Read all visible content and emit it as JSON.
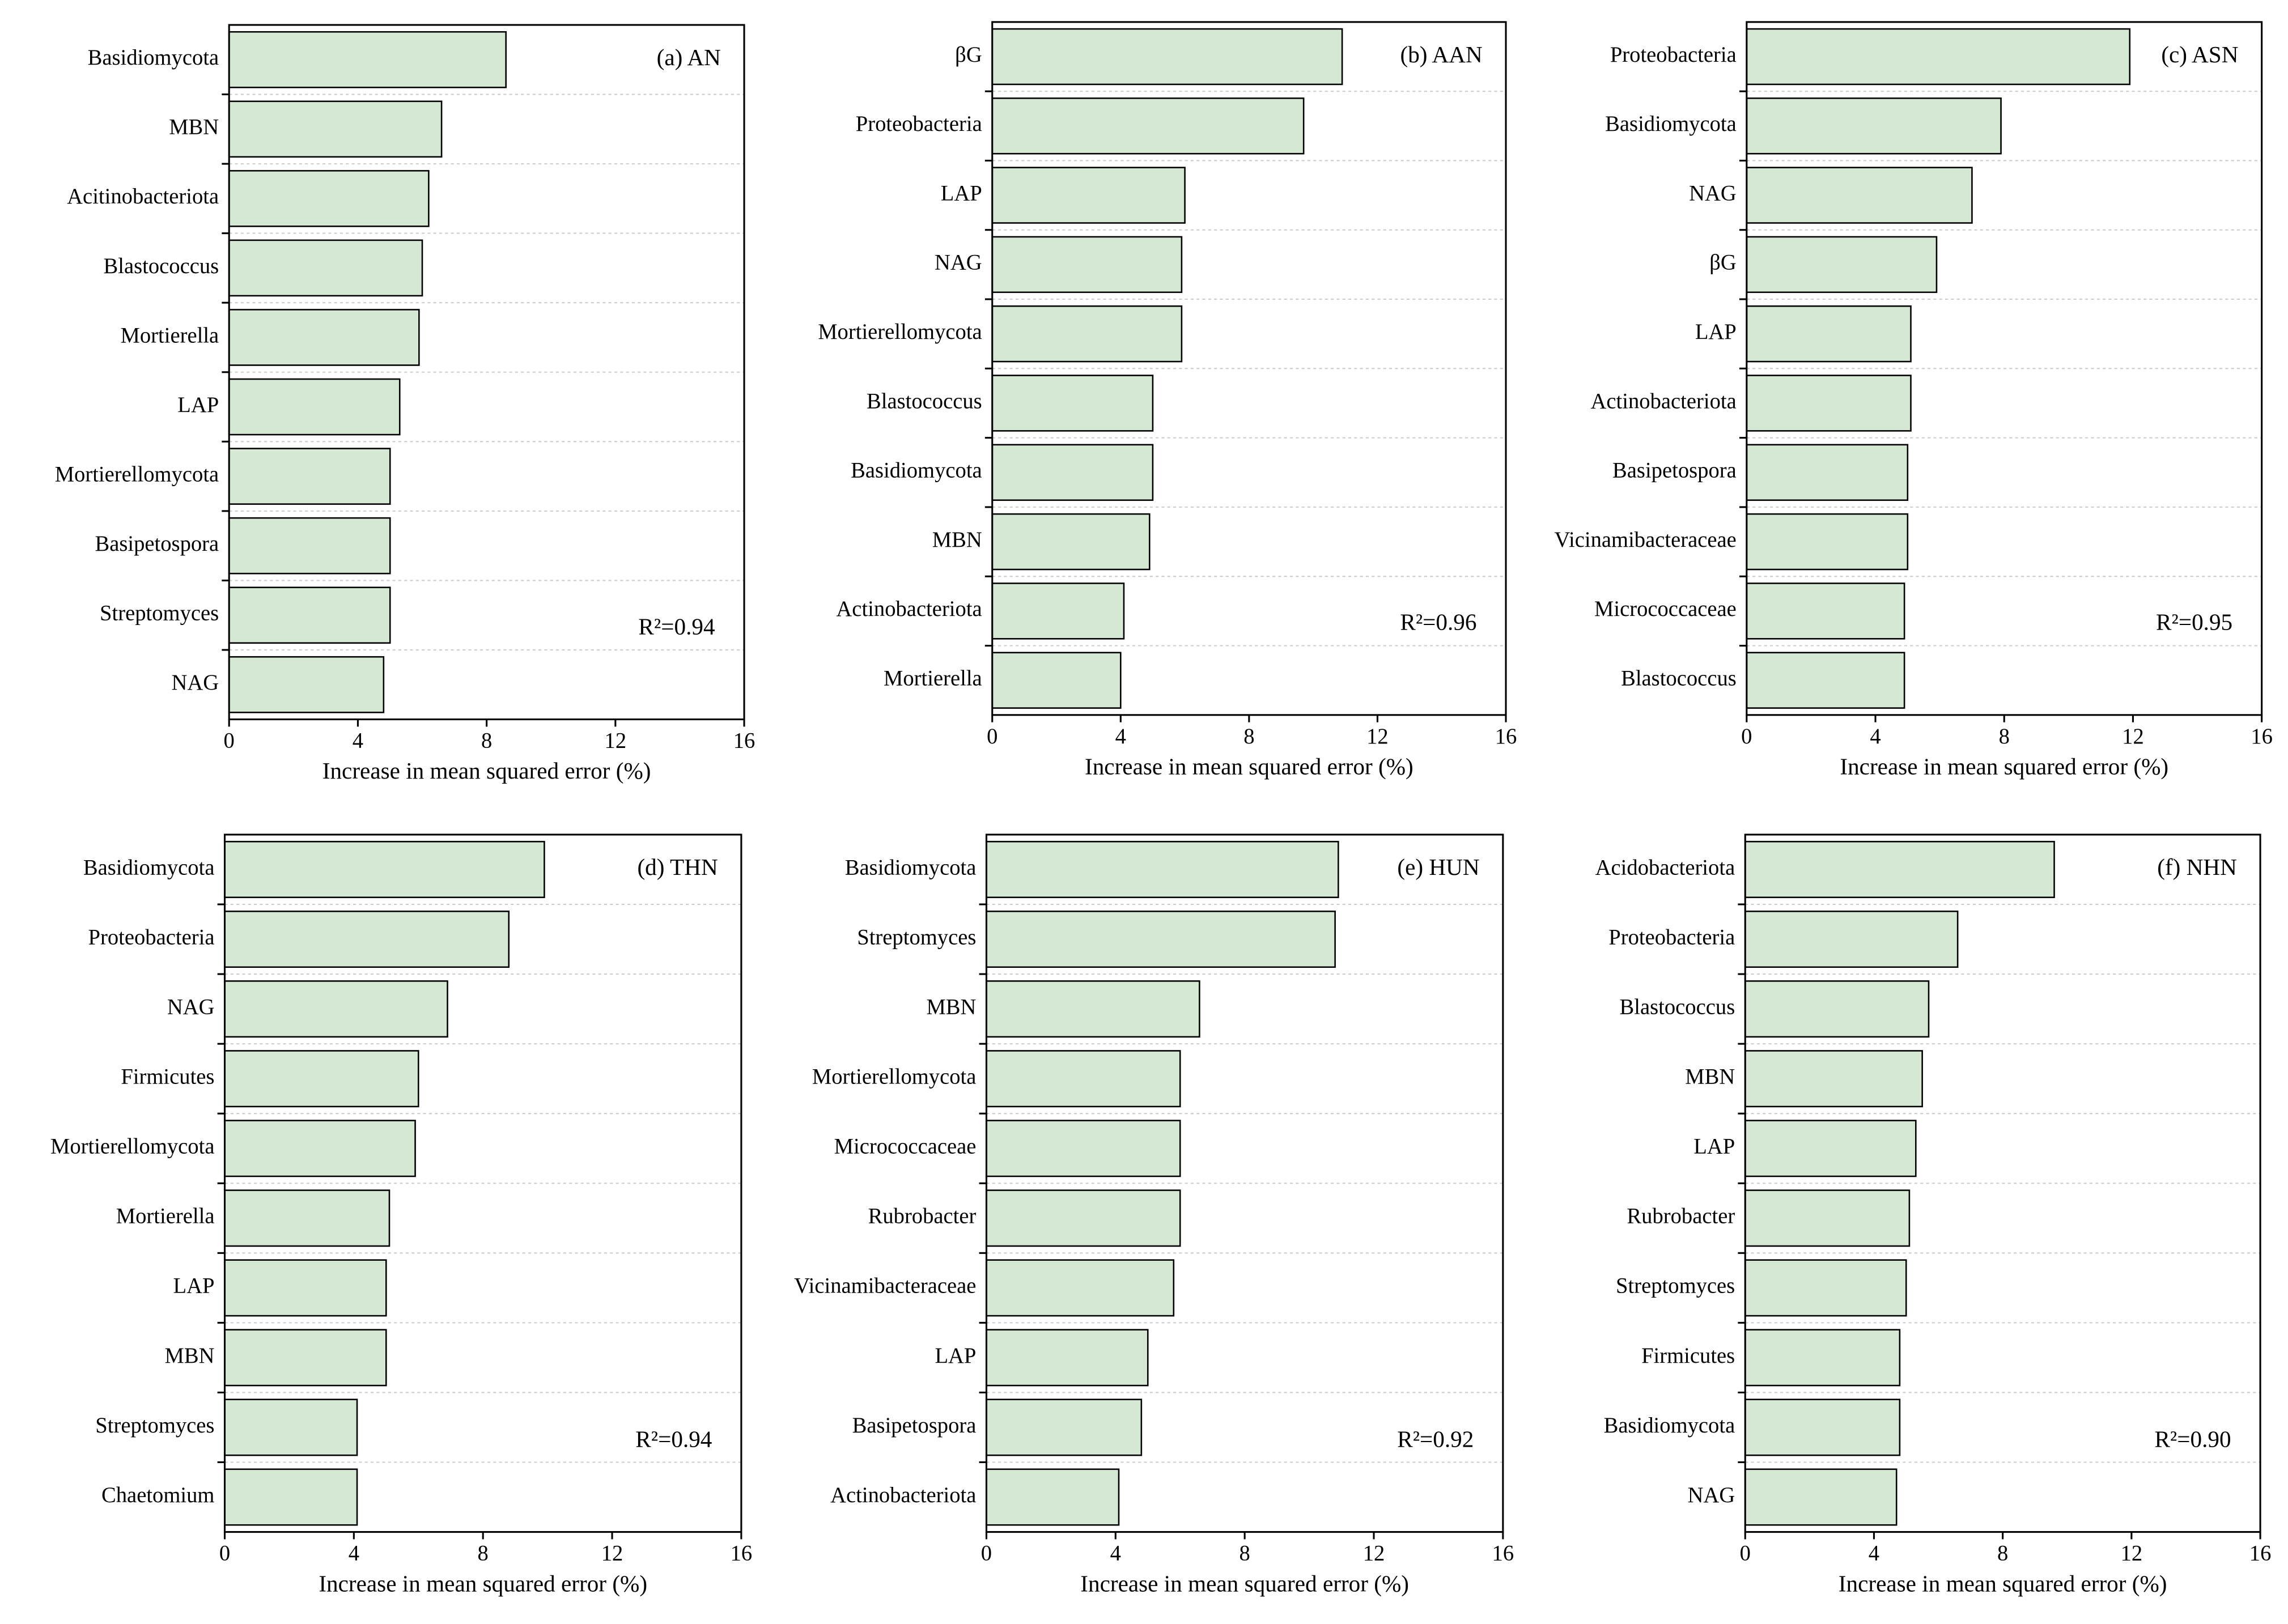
{
  "chart_data": [
    {
      "type": "bar",
      "orientation": "horizontal",
      "title": "(a) AN",
      "annotation": "R²=0.94",
      "xlabel": "Increase in mean squared error (%)",
      "categories": [
        "Basidiomycota",
        "MBN",
        "Acitinobacteriota",
        "Blastococcus",
        "Mortierella",
        "LAP",
        "Mortierellomycota",
        "Basipetospora",
        "Streptomyces",
        "NAG"
      ],
      "values": [
        8.6,
        6.6,
        6.2,
        6.0,
        5.9,
        5.3,
        5.0,
        5.0,
        5.0,
        4.8
      ],
      "color": "#d5e8d4",
      "xlim": [
        0,
        16
      ],
      "xticks": [
        0,
        4,
        8,
        12,
        16
      ],
      "grid": true
    },
    {
      "type": "bar",
      "orientation": "horizontal",
      "title": "(b) AAN",
      "annotation": "R²=0.96",
      "xlabel": "Increase in mean squared error (%)",
      "categories": [
        "βG",
        "Proteobacteria",
        "LAP",
        "NAG",
        "Mortierellomycota",
        "Blastococcus",
        "Basidiomycota",
        "MBN",
        "Actinobacteriota",
        "Mortierella"
      ],
      "values": [
        10.9,
        9.7,
        6.0,
        5.9,
        5.9,
        5.0,
        5.0,
        4.9,
        4.1,
        4.0
      ],
      "color": "#d5e8d4",
      "xlim": [
        0,
        16
      ],
      "xticks": [
        0,
        4,
        8,
        12,
        16
      ],
      "grid": true
    },
    {
      "type": "bar",
      "orientation": "horizontal",
      "title": "(c) ASN",
      "annotation": "R²=0.95",
      "xlabel": "Increase in mean squared error (%)",
      "categories": [
        "Proteobacteria",
        "Basidiomycota",
        "NAG",
        "βG",
        "LAP",
        "Actinobacteriota",
        "Basipetospora",
        "Vicinamibacteraceae",
        "Micrococcaceae",
        "Blastococcus"
      ],
      "values": [
        11.9,
        7.9,
        7.0,
        5.9,
        5.1,
        5.1,
        5.0,
        5.0,
        4.9,
        4.9
      ],
      "color": "#d5e8d4",
      "xlim": [
        0,
        16
      ],
      "xticks": [
        0,
        4,
        8,
        12,
        16
      ],
      "grid": true
    },
    {
      "type": "bar",
      "orientation": "horizontal",
      "title": "(d) THN",
      "annotation": "R²=0.94",
      "xlabel": "Increase in mean squared error (%)",
      "categories": [
        "Basidiomycota",
        "Proteobacteria",
        "NAG",
        "Firmicutes",
        "Mortierellomycota",
        "Mortierella",
        "LAP",
        "MBN",
        "Streptomyces",
        "Chaetomium"
      ],
      "values": [
        9.9,
        8.8,
        6.9,
        6.0,
        5.9,
        5.1,
        5.0,
        5.0,
        4.1,
        4.1
      ],
      "color": "#d5e8d4",
      "xlim": [
        0,
        16
      ],
      "xticks": [
        0,
        4,
        8,
        12,
        16
      ],
      "grid": true
    },
    {
      "type": "bar",
      "orientation": "horizontal",
      "title": "(e) HUN",
      "annotation": "R²=0.92",
      "xlabel": "Increase in mean squared error (%)",
      "categories": [
        "Basidiomycota",
        "Streptomyces",
        "MBN",
        "Mortierellomycota",
        "Micrococcaceae",
        "Rubrobacter",
        "Vicinamibacteraceae",
        "LAP",
        "Basipetospora",
        "Actinobacteriota"
      ],
      "values": [
        10.9,
        10.8,
        6.6,
        6.0,
        6.0,
        6.0,
        5.8,
        5.0,
        4.8,
        4.1
      ],
      "color": "#d5e8d4",
      "xlim": [
        0,
        16
      ],
      "xticks": [
        0,
        4,
        8,
        12,
        16
      ],
      "grid": true
    },
    {
      "type": "bar",
      "orientation": "horizontal",
      "title": "(f) NHN",
      "annotation": "R²=0.90",
      "xlabel": "Increase in mean squared error (%)",
      "categories": [
        "Acidobacteriota",
        "Proteobacteria",
        "Blastococcus",
        "MBN",
        "LAP",
        "Rubrobacter",
        "Streptomyces",
        "Firmicutes",
        "Basidiomycota",
        "NAG"
      ],
      "values": [
        9.6,
        6.6,
        5.7,
        5.5,
        5.3,
        5.1,
        5.0,
        4.8,
        4.8,
        4.7
      ],
      "color": "#d5e8d4",
      "xlim": [
        0,
        16
      ],
      "xticks": [
        0,
        4,
        8,
        12,
        16
      ],
      "grid": true
    }
  ]
}
